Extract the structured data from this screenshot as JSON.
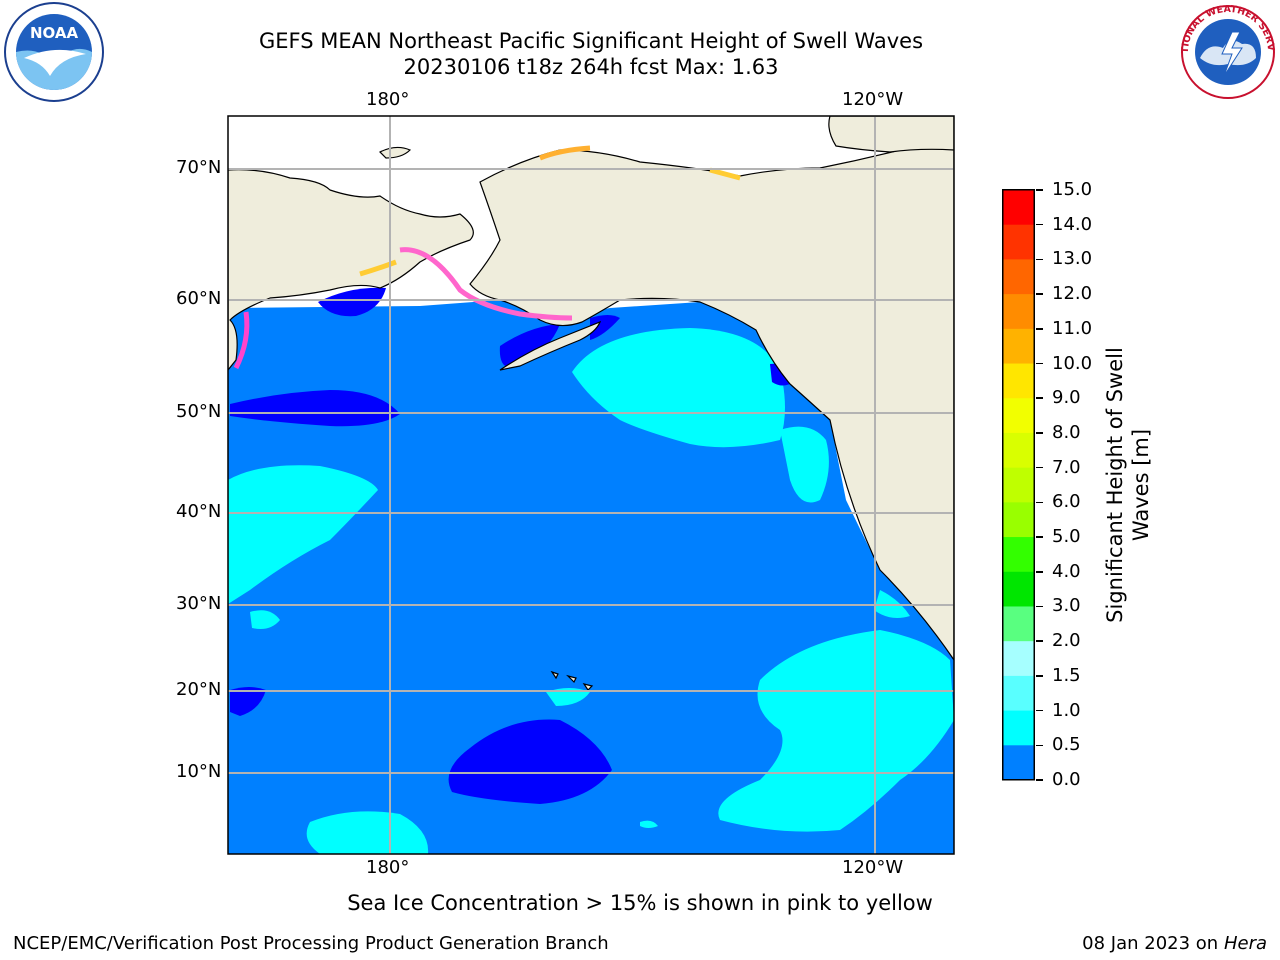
{
  "title": {
    "line1": "GEFS MEAN Northeast Pacific Significant Height of Swell Waves",
    "line2": "20230106 t18z 264h fcst   Max: 1.63"
  },
  "map": {
    "lon_labels": [
      "180°",
      "120°W"
    ],
    "lat_labels": [
      "70°N",
      "60°N",
      "50°N",
      "40°N",
      "30°N",
      "20°N",
      "10°N"
    ],
    "extent": {
      "lon_min": 160,
      "lon_max": 250,
      "lat_min": 1,
      "lat_max": 75
    },
    "colors": {
      "land": "#efeddc",
      "ocean_main": "#0080ff",
      "ocean_high": "#00ffff",
      "ocean_low": "#0000ff",
      "grid": "#b3b3b3"
    }
  },
  "colorbar": {
    "label_line1": "Significant Height of Swell",
    "label_line2": "Waves [m]",
    "ticks": [
      "15.0",
      "14.0",
      "13.0",
      "12.0",
      "11.0",
      "10.0",
      "9.0",
      "8.0",
      "7.0",
      "6.0",
      "5.0",
      "4.0",
      "3.0",
      "2.0",
      "1.5",
      "1.0",
      "0.5",
      "0.0"
    ],
    "colors": [
      "#ff0000",
      "#ff3300",
      "#ff6600",
      "#ff8c00",
      "#ffb200",
      "#ffe600",
      "#f2ff00",
      "#d9ff00",
      "#bfff00",
      "#99ff00",
      "#33ff00",
      "#00e600",
      "#59ff80",
      "#a6ffff",
      "#59ffff",
      "#00ffff",
      "#0080ff",
      "#0000ff"
    ]
  },
  "notes": {
    "sea_ice": "Sea Ice Concentration > 15% is shown in pink to yellow",
    "credit": "NCEP/EMC/Verification Post Processing Product Generation Branch",
    "date": "08 Jan 2023 on ",
    "machine": "Hera"
  },
  "logos": {
    "noaa_text": "NOAA",
    "nws_text": "NATIONAL WEATHER SERVICE"
  }
}
